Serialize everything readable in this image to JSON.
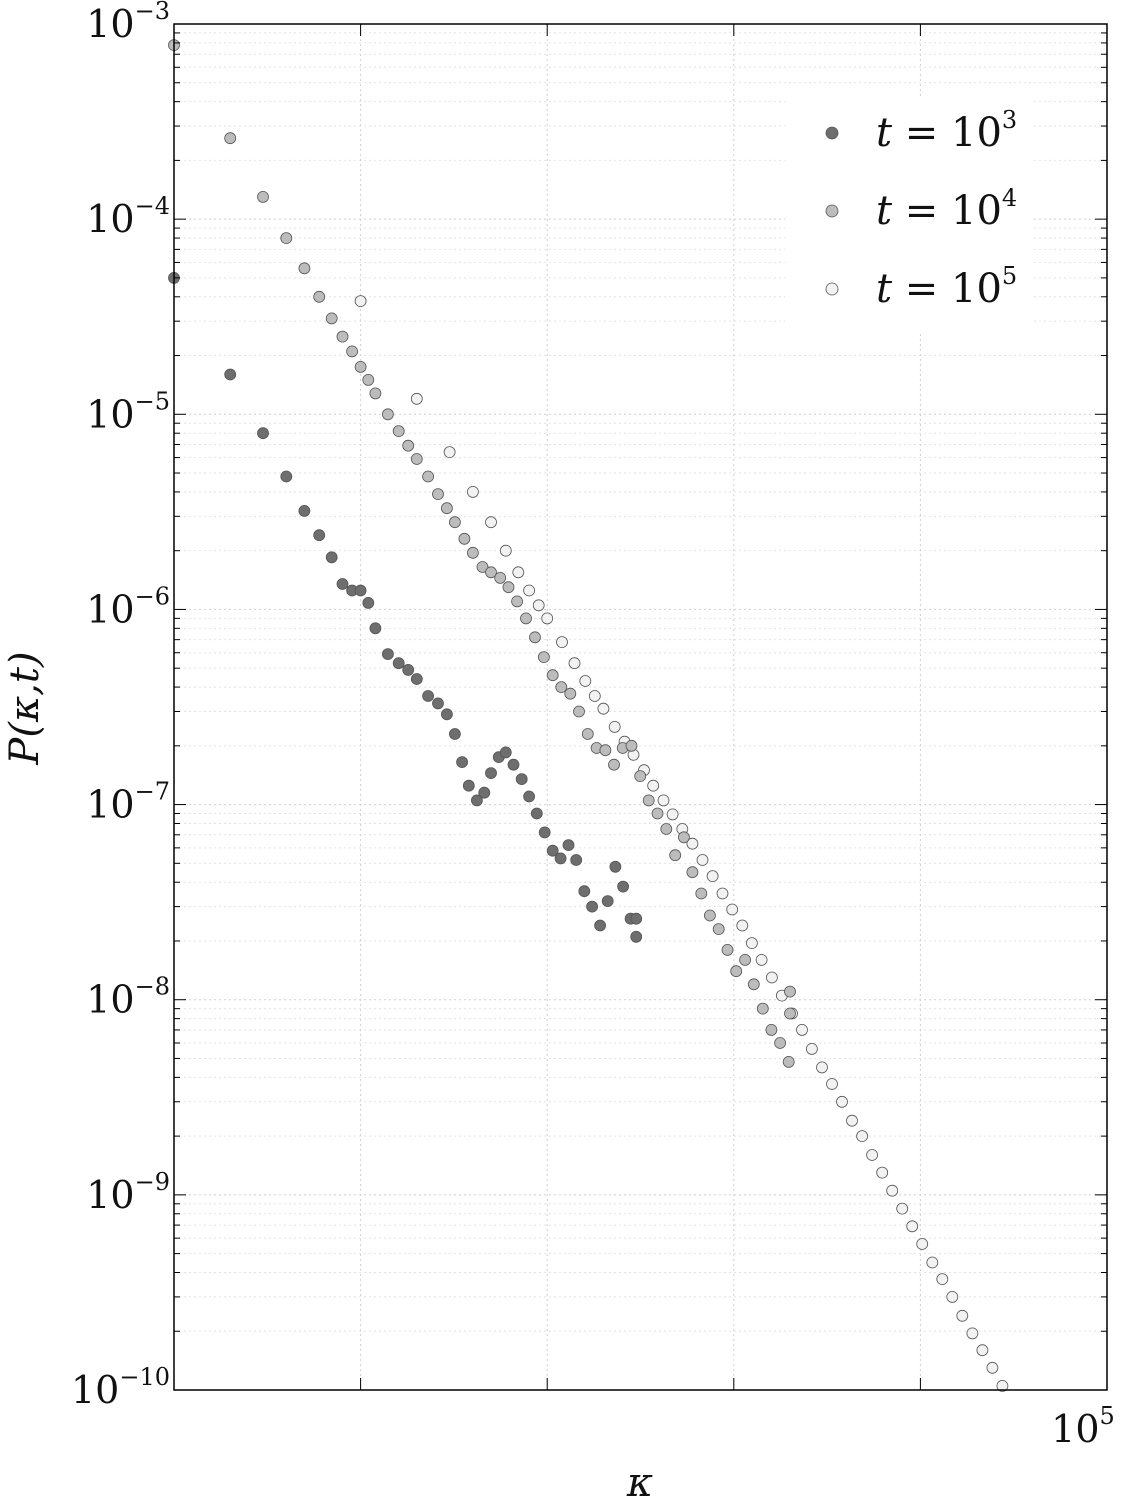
{
  "chart_data": {
    "type": "scatter",
    "title": "",
    "xlabel": "κ",
    "ylabel": "P(κ,t)",
    "x_scale": "log",
    "y_scale": "log",
    "xlim": [
      1,
      100000
    ],
    "ylim": [
      1e-10,
      0.001
    ],
    "grid": true,
    "legend_position": "top-right",
    "y_tick_labels": [
      {
        "value": 0.001,
        "base": "10",
        "exp": "−3"
      },
      {
        "value": 0.0001,
        "base": "10",
        "exp": "−4"
      },
      {
        "value": 1e-05,
        "base": "10",
        "exp": "−5"
      },
      {
        "value": 1e-06,
        "base": "10",
        "exp": "−6"
      },
      {
        "value": 1e-07,
        "base": "10",
        "exp": "−7"
      },
      {
        "value": 1e-08,
        "base": "10",
        "exp": "−8"
      },
      {
        "value": 1e-09,
        "base": "10",
        "exp": "−9"
      },
      {
        "value": 1e-10,
        "base": "10",
        "exp": "−10"
      }
    ],
    "x_tick_labels": [
      {
        "value": 100000,
        "base": "10",
        "exp": "5"
      }
    ],
    "series": [
      {
        "name": "t = 10^3",
        "legend": {
          "var": "t",
          "eq": " = ",
          "base": "10",
          "exp": "3"
        },
        "marker_color": "#6e6e6e",
        "points": [
          [
            1,
            5e-05
          ],
          [
            2,
            1.6e-05
          ],
          [
            3,
            8e-06
          ],
          [
            4,
            4.8e-06
          ],
          [
            5,
            3.2e-06
          ],
          [
            6,
            2.4e-06
          ],
          [
            7,
            1.85e-06
          ],
          [
            8,
            1.35e-06
          ],
          [
            9,
            1.25e-06
          ],
          [
            10,
            1.25e-06
          ],
          [
            11,
            1.08e-06
          ],
          [
            12,
            8e-07
          ],
          [
            14,
            5.9e-07
          ],
          [
            16,
            5.3e-07
          ],
          [
            18,
            4.9e-07
          ],
          [
            20,
            4.4e-07
          ],
          [
            23,
            3.6e-07
          ],
          [
            26,
            3.3e-07
          ],
          [
            29,
            2.9e-07
          ],
          [
            32,
            2.3e-07
          ],
          [
            35,
            1.65e-07
          ],
          [
            38,
            1.25e-07
          ],
          [
            42,
            1.05e-07
          ],
          [
            46,
            1.15e-07
          ],
          [
            50,
            1.45e-07
          ],
          [
            55,
            1.75e-07
          ],
          [
            60,
            1.85e-07
          ],
          [
            66,
            1.6e-07
          ],
          [
            73,
            1.35e-07
          ],
          [
            80,
            1.1e-07
          ],
          [
            88,
            9e-08
          ],
          [
            97,
            7.2e-08
          ],
          [
            107,
            5.8e-08
          ],
          [
            118,
            5.3e-08
          ],
          [
            130,
            6.2e-08
          ],
          [
            143,
            5.2e-08
          ],
          [
            158,
            3.6e-08
          ],
          [
            174,
            3e-08
          ],
          [
            192,
            2.4e-08
          ],
          [
            211,
            3.2e-08
          ],
          [
            232,
            4.8e-08
          ],
          [
            255,
            3.8e-08
          ],
          [
            280,
            2.6e-08
          ],
          [
            300,
            2.1e-08
          ],
          [
            300,
            2.6e-08
          ]
        ]
      },
      {
        "name": "t = 10^4",
        "legend": {
          "var": "t",
          "eq": " = ",
          "base": "10",
          "exp": "4"
        },
        "marker_color": "#bcbcbc",
        "points": [
          [
            1,
            0.00078
          ],
          [
            2,
            0.00026
          ],
          [
            3,
            0.00013
          ],
          [
            4,
            8e-05
          ],
          [
            5,
            5.6e-05
          ],
          [
            6,
            4e-05
          ],
          [
            7,
            3.1e-05
          ],
          [
            8,
            2.5e-05
          ],
          [
            9,
            2.1e-05
          ],
          [
            10,
            1.75e-05
          ],
          [
            11,
            1.5e-05
          ],
          [
            12,
            1.28e-05
          ],
          [
            14,
            1e-05
          ],
          [
            16,
            8.2e-06
          ],
          [
            18,
            6.9e-06
          ],
          [
            20,
            5.9e-06
          ],
          [
            23,
            4.8e-06
          ],
          [
            26,
            3.9e-06
          ],
          [
            29,
            3.3e-06
          ],
          [
            32,
            2.8e-06
          ],
          [
            36,
            2.3e-06
          ],
          [
            40,
            1.95e-06
          ],
          [
            45,
            1.65e-06
          ],
          [
            50,
            1.55e-06
          ],
          [
            56,
            1.45e-06
          ],
          [
            62,
            1.3e-06
          ],
          [
            69,
            1.1e-06
          ],
          [
            77,
            9e-07
          ],
          [
            86,
            7.2e-07
          ],
          [
            96,
            5.7e-07
          ],
          [
            107,
            4.6e-07
          ],
          [
            119,
            4e-07
          ],
          [
            133,
            3.7e-07
          ],
          [
            148,
            3e-07
          ],
          [
            165,
            2.3e-07
          ],
          [
            184,
            1.95e-07
          ],
          [
            205,
            1.9e-07
          ],
          [
            228,
            1.6e-07
          ],
          [
            254,
            1.95e-07
          ],
          [
            283,
            2e-07
          ],
          [
            315,
            1.4e-07
          ],
          [
            350,
            1.05e-07
          ],
          [
            390,
            9e-08
          ],
          [
            435,
            7.5e-08
          ],
          [
            485,
            5.5e-08
          ],
          [
            540,
            6.8e-08
          ],
          [
            600,
            4.5e-08
          ],
          [
            670,
            3.5e-08
          ],
          [
            745,
            2.7e-08
          ],
          [
            830,
            2.3e-08
          ],
          [
            925,
            1.8e-08
          ],
          [
            1030,
            1.4e-08
          ],
          [
            1150,
            1.6e-08
          ],
          [
            1280,
            1.2e-08
          ],
          [
            1430,
            9e-09
          ],
          [
            1590,
            7e-09
          ],
          [
            1770,
            6e-09
          ],
          [
            1970,
            4.8e-09
          ],
          [
            2000,
            8.5e-09
          ],
          [
            2000,
            1.1e-08
          ]
        ]
      },
      {
        "name": "t = 10^5",
        "legend": {
          "var": "t",
          "eq": " = ",
          "base": "10",
          "exp": "5"
        },
        "marker_color": "#f2f2f2",
        "points": [
          [
            10,
            3.8e-05
          ],
          [
            20,
            1.2e-05
          ],
          [
            30,
            6.4e-06
          ],
          [
            40,
            4e-06
          ],
          [
            50,
            2.8e-06
          ],
          [
            60,
            2e-06
          ],
          [
            70,
            1.55e-06
          ],
          [
            80,
            1.25e-06
          ],
          [
            90,
            1.05e-06
          ],
          [
            100,
            9e-07
          ],
          [
            120,
            6.8e-07
          ],
          [
            140,
            5.3e-07
          ],
          [
            160,
            4.3e-07
          ],
          [
            180,
            3.6e-07
          ],
          [
            200,
            3.1e-07
          ],
          [
            230,
            2.5e-07
          ],
          [
            260,
            2.1e-07
          ],
          [
            290,
            1.8e-07
          ],
          [
            330,
            1.5e-07
          ],
          [
            370,
            1.25e-07
          ],
          [
            420,
            1.05e-07
          ],
          [
            470,
            8.9e-08
          ],
          [
            530,
            7.5e-08
          ],
          [
            600,
            6.3e-08
          ],
          [
            680,
            5.2e-08
          ],
          [
            770,
            4.3e-08
          ],
          [
            870,
            3.5e-08
          ],
          [
            980,
            2.9e-08
          ],
          [
            1110,
            2.4e-08
          ],
          [
            1250,
            1.95e-08
          ],
          [
            1410,
            1.6e-08
          ],
          [
            1600,
            1.3e-08
          ],
          [
            1810,
            1.05e-08
          ],
          [
            2050,
            8.5e-09
          ],
          [
            2320,
            7e-09
          ],
          [
            2620,
            5.6e-09
          ],
          [
            2970,
            4.5e-09
          ],
          [
            3360,
            3.7e-09
          ],
          [
            3800,
            3e-09
          ],
          [
            4300,
            2.4e-09
          ],
          [
            4870,
            2e-09
          ],
          [
            5510,
            1.6e-09
          ],
          [
            6240,
            1.3e-09
          ],
          [
            7060,
            1.05e-09
          ],
          [
            7990,
            8.5e-10
          ],
          [
            9040,
            6.9e-10
          ],
          [
            10230,
            5.6e-10
          ],
          [
            11580,
            4.5e-10
          ],
          [
            13100,
            3.7e-10
          ],
          [
            14830,
            3e-10
          ],
          [
            16780,
            2.4e-10
          ],
          [
            18990,
            1.95e-10
          ],
          [
            21490,
            1.6e-10
          ],
          [
            24320,
            1.3e-10
          ],
          [
            27520,
            1.05e-10
          ]
        ]
      }
    ]
  }
}
